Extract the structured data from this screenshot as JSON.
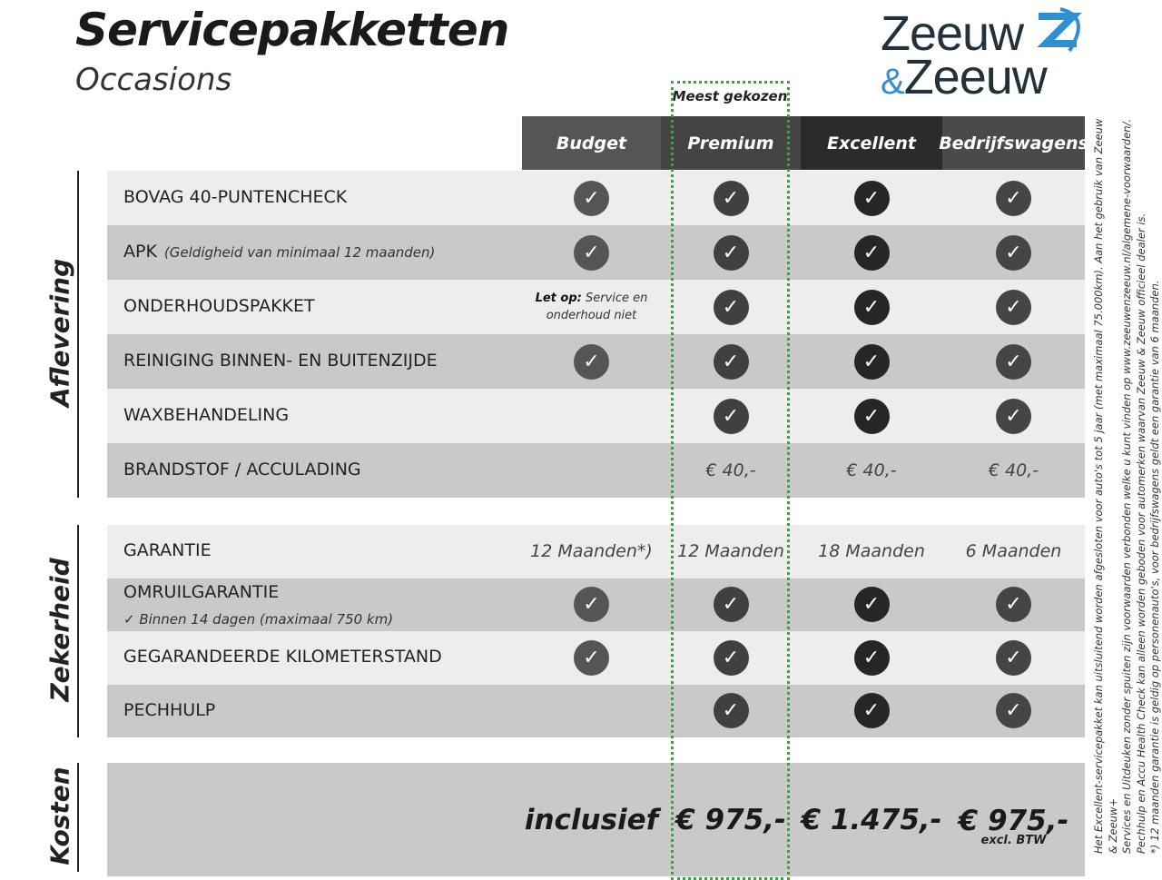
{
  "header": {
    "title": "Servicepakketten",
    "subtitle": "Occasions",
    "logo_line1": "Zeeuw",
    "logo_amp": "&",
    "logo_line2": "Zeeuw",
    "most_chosen": "Meest gekozen"
  },
  "columns": [
    "Budget",
    "Premium",
    "Excellent",
    "Bedrijfswagens"
  ],
  "colors": {
    "header": [
      "#555555",
      "#444444",
      "#2b2b2b",
      "#4a4a4a"
    ],
    "check": [
      "#555555",
      "#404040",
      "#262626",
      "#454545"
    ],
    "row_light": "#ededed",
    "row_dark": "#c9c9c9",
    "highlight": "#3aa33a",
    "logo_blue": "#2f8fd0"
  },
  "sections": [
    {
      "label": "Aflevering",
      "rows": [
        {
          "label": "BOVAG 40-PUNTENCHECK",
          "values": [
            "check",
            "check",
            "check",
            "check"
          ]
        },
        {
          "label": "APK",
          "note": "(Geldigheid van minimaal 12 maanden)",
          "values": [
            "check",
            "check",
            "check",
            "check"
          ]
        },
        {
          "label": "ONDERHOUDSPAKKET",
          "values": [
            "letop",
            "check",
            "check",
            "check"
          ]
        },
        {
          "label": "REINIGING BINNEN- EN BUITENZIJDE",
          "values": [
            "check",
            "check",
            "check",
            "check"
          ]
        },
        {
          "label": "WAXBEHANDELING",
          "values": [
            "",
            "check",
            "check",
            "check"
          ]
        },
        {
          "label": "BRANDSTOF / ACCULADING",
          "values": [
            "",
            "€ 40,-",
            "€ 40,-",
            "€ 40,-"
          ]
        }
      ]
    },
    {
      "label": "Zekerheid",
      "rows": [
        {
          "label": "GARANTIE",
          "values": [
            "12 Maanden*)",
            "12 Maanden",
            "18 Maanden",
            "6 Maanden"
          ]
        },
        {
          "label": "OMRUILGARANTIE",
          "sub": "✓   Binnen 14 dagen (maximaal 750 km)",
          "values": [
            "check",
            "check",
            "check",
            "check"
          ]
        },
        {
          "label": "GEGARANDEERDE KILOMETERSTAND",
          "values": [
            "check",
            "check",
            "check",
            "check"
          ]
        },
        {
          "label": "PECHHULP",
          "values": [
            "",
            "check",
            "check",
            "check"
          ]
        }
      ]
    },
    {
      "label": "Kosten",
      "prices": [
        "inclusief",
        "€ 975,-",
        "€ 1.475,-",
        "€ 975,-"
      ],
      "price_note": "excl. BTW"
    }
  ],
  "letop": {
    "bold": "Let op:",
    "text": " Service en",
    "line2": "onderhoud niet"
  },
  "footnotes": [
    "Het Excellent-servicepakket kan uitsluitend worden afgesloten voor auto's tot 5 jaar (met maximaal 75.000km). Aan het gebruik van Zeeuw & Zeeuw+",
    "Services en Uitdeuken zonder spuiten zijn voorwaarden verbonden welke u kunt vinden op www.zeeuwenzeeuw.nl/algemene-voorwaarden/.",
    "Pechhulp en Accu Health Check kan alleen worden geboden voor automerken waarvan Zeeuw & Zeeuw officieel dealer is.",
    "*) 12 maanden garantie is geldig op personenauto's, voor bedrijfswagens geldt een garantie van 6 maanden."
  ]
}
